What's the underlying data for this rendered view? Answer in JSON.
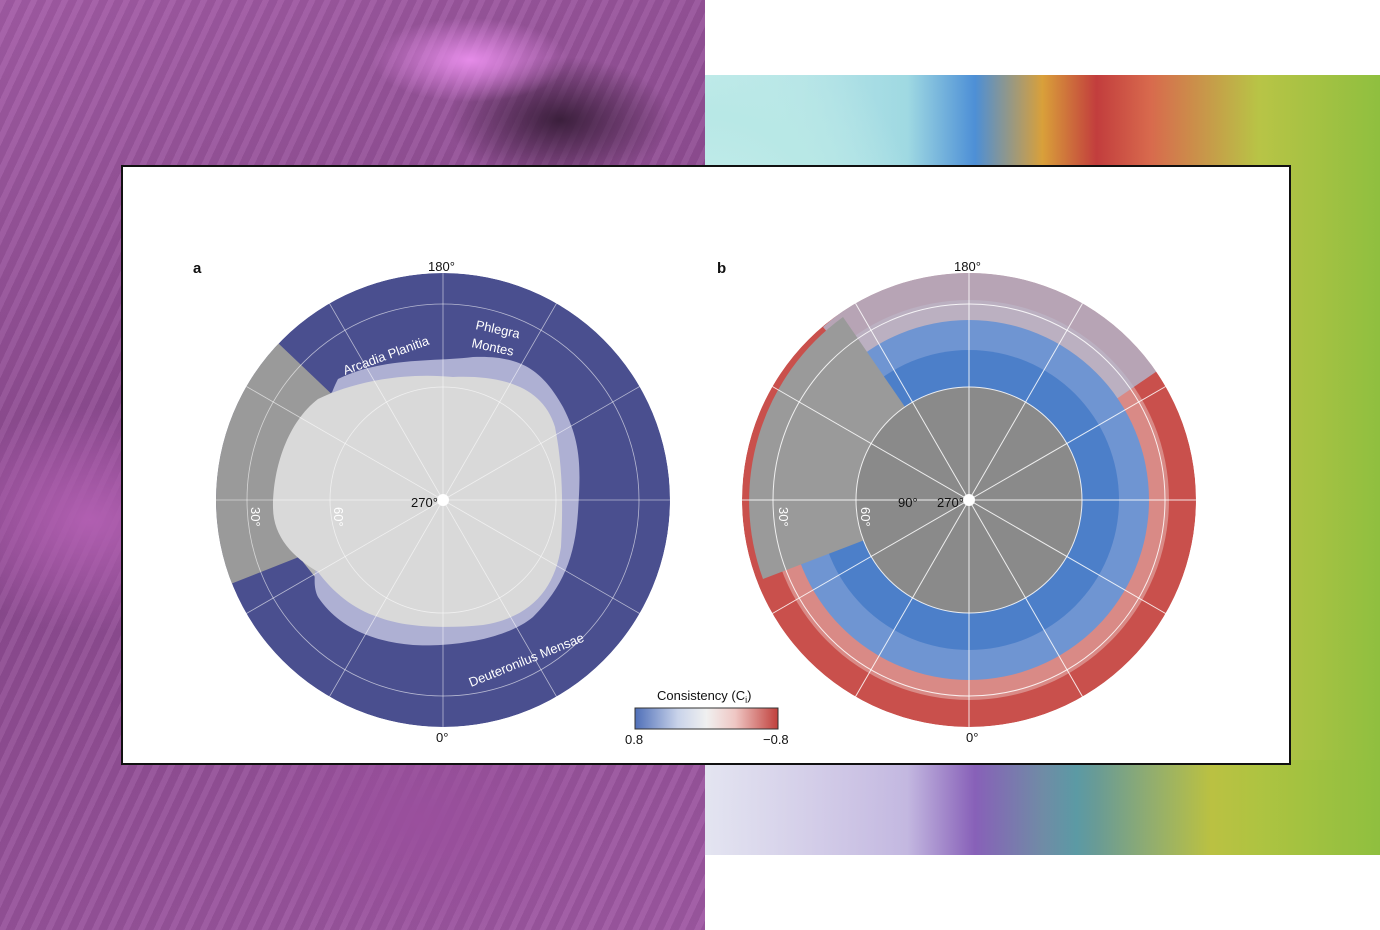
{
  "panel_a": {
    "label": "a",
    "lon_top": "180°",
    "lon_bottom": "0°",
    "center": "270°",
    "lat_30": "30°",
    "lat_60": "60°",
    "regions": {
      "arcadia": "Arcadia Planitia",
      "phlegra_line1": "Phlegra",
      "phlegra_line2": "Montes",
      "deuteronilus": "Deuteronilus Mensae"
    },
    "colors": {
      "ring": "#4a4f8f",
      "inner_lavender": "#aeb0d3",
      "core": "#d9d9d9",
      "basemap": "#9a9a9a"
    }
  },
  "panel_b": {
    "label": "b",
    "lon_top": "180°",
    "lon_bottom": "0°",
    "center": "270°",
    "left_lon": "90°",
    "lat_30": "30°",
    "lat_60": "60°",
    "colors": {
      "outer_red": "#c9504c",
      "blue": "#4c7fc9",
      "core": "#8a8a8a"
    }
  },
  "colorbar": {
    "title": "Consistency (C",
    "title_sub": "i",
    "title_close": ")",
    "min_label": "0.8",
    "max_label": "−0.8",
    "colors": [
      "#4f6fb8",
      "#c9d3ea",
      "#f0f0f0",
      "#efc7c4",
      "#c0403c"
    ]
  }
}
